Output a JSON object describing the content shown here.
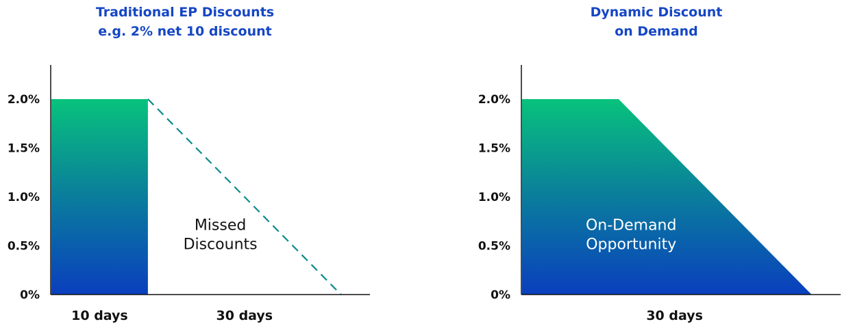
{
  "colors": {
    "title": "#1546c4",
    "gradient_top": "#08c27c",
    "gradient_mid": "#0a7d9c",
    "gradient_bottom": "#0a3fbe",
    "axis": "#111111",
    "dashed_line": "#0a8a8a"
  },
  "chart_data": [
    {
      "type": "area",
      "title_lines": [
        "Traditional EP Discounts",
        "e.g. 2% net 10 discount"
      ],
      "yticks": [
        "0%",
        "0.5%",
        "1.0%",
        "1.5%",
        "2.0%"
      ],
      "ylim": [
        0,
        2.35
      ],
      "xlim": [
        0,
        33
      ],
      "xtick_labels": [
        {
          "x": 5,
          "label": "10 days"
        },
        {
          "x": 20,
          "label": "30 days"
        }
      ],
      "series": [
        {
          "style": "gradient-fill",
          "points": [
            [
              0,
              2.0
            ],
            [
              10,
              2.0
            ],
            [
              10,
              0
            ],
            [
              0,
              0
            ]
          ]
        },
        {
          "style": "dashed",
          "points": [
            [
              10,
              2.0
            ],
            [
              30,
              0
            ]
          ]
        }
      ],
      "annotation": {
        "lines": [
          "Missed",
          "Discounts"
        ],
        "x": 17.5,
        "y": 0.62,
        "color": "#111111"
      }
    },
    {
      "type": "area",
      "title_lines": [
        "Dynamic Discount",
        "on Demand"
      ],
      "yticks": [
        "0%",
        "0.5%",
        "1.0%",
        "1.5%",
        "2.0%"
      ],
      "ylim": [
        0,
        2.35
      ],
      "xlim": [
        0,
        33
      ],
      "xtick_labels": [
        {
          "x": 15.8,
          "label": "30 days"
        }
      ],
      "series": [
        {
          "style": "gradient-fill",
          "points": [
            [
              0,
              2.0
            ],
            [
              10,
              2.0
            ],
            [
              30,
              0
            ],
            [
              0,
              0
            ]
          ]
        }
      ],
      "annotation": {
        "lines": [
          "On-Demand",
          "Opportunity"
        ],
        "x": 11.3,
        "y": 0.62,
        "color": "#ffffff"
      }
    }
  ]
}
